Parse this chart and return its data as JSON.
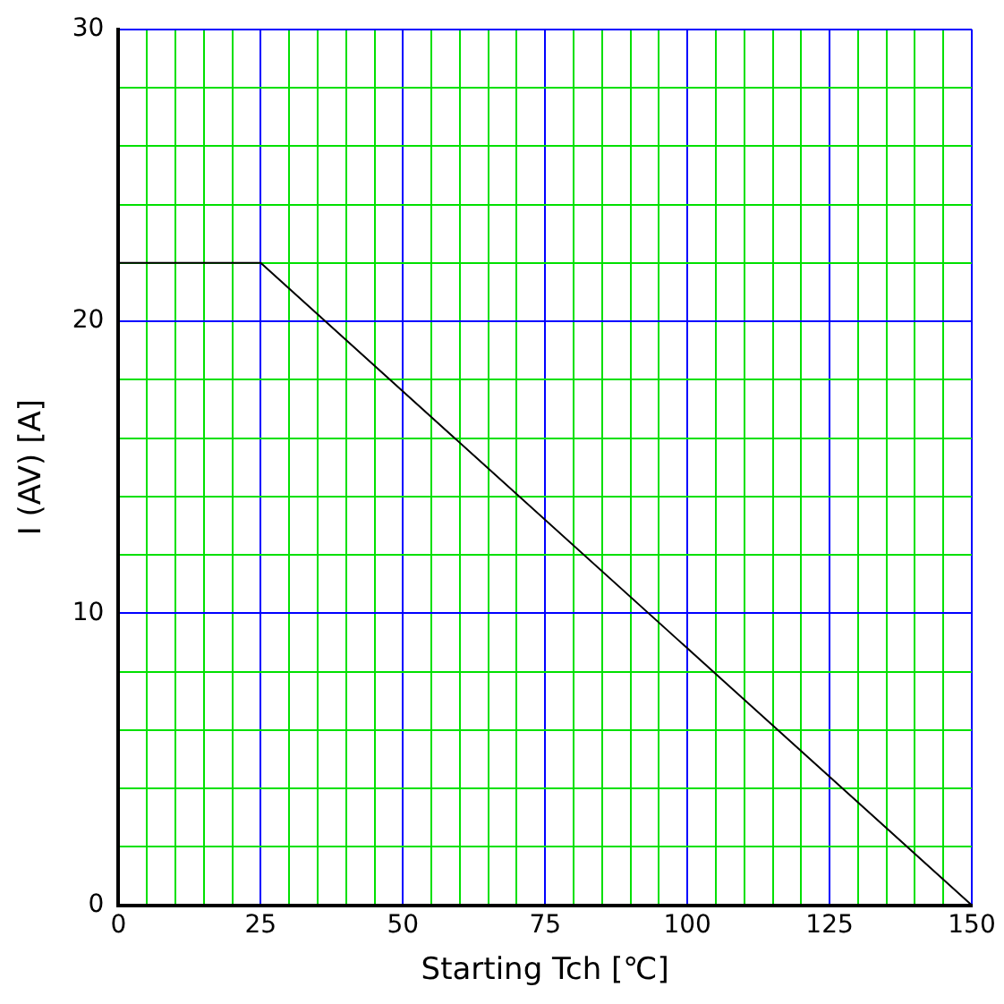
{
  "chart_data": {
    "type": "line",
    "xlabel": "Starting Tch [℃]",
    "ylabel": "I (AV) [A]",
    "x": [
      0,
      25,
      150
    ],
    "series": [
      {
        "color": "#000000",
        "values": [
          22,
          22,
          0
        ]
      }
    ],
    "xlim": [
      0,
      150
    ],
    "xticks": [
      0,
      {
        "value": 5,
        "label": null
      },
      {
        "value": 10,
        "label": null
      },
      {
        "value": 15,
        "label": null
      },
      {
        "value": 20,
        "label": null
      },
      25,
      {
        "value": 30,
        "label": null
      },
      {
        "value": 35,
        "label": null
      },
      {
        "value": 40,
        "label": null
      },
      {
        "value": 45,
        "label": null
      },
      50,
      {
        "value": 55,
        "label": null
      },
      {
        "value": 60,
        "label": null
      },
      {
        "value": 65,
        "label": null
      },
      {
        "value": 70,
        "label": null
      },
      75,
      {
        "value": 80,
        "label": null
      },
      {
        "value": 85,
        "label": null
      },
      {
        "value": 90,
        "label": null
      },
      {
        "value": 95,
        "label": null
      },
      100,
      {
        "value": 105,
        "label": null
      },
      {
        "value": 110,
        "label": null
      },
      {
        "value": 115,
        "label": null
      },
      {
        "value": 120,
        "label": null
      },
      125,
      {
        "value": 130,
        "label": null
      },
      {
        "value": 135,
        "label": null
      },
      {
        "value": 140,
        "label": null
      },
      {
        "value": 145,
        "label": null
      },
      150
    ],
    "ylim": [
      0,
      30
    ],
    "yticks": [
      0,
      {
        "value": 2,
        "label": null
      },
      {
        "value": 4,
        "label": null
      },
      {
        "value": 6,
        "label": null
      },
      {
        "value": 8,
        "label": null
      },
      10,
      {
        "value": 12,
        "label": null
      },
      {
        "value": 14,
        "label": null
      },
      {
        "value": 16,
        "label": null
      },
      {
        "value": 18,
        "label": null
      },
      20,
      {
        "value": 22,
        "label": null
      },
      {
        "value": 24,
        "label": null
      },
      {
        "value": 26,
        "label": null
      },
      {
        "value": 28,
        "label": null
      },
      30
    ],
    "grid": true,
    "legend": false,
    "marker": "none",
    "line_style": "solid"
  }
}
